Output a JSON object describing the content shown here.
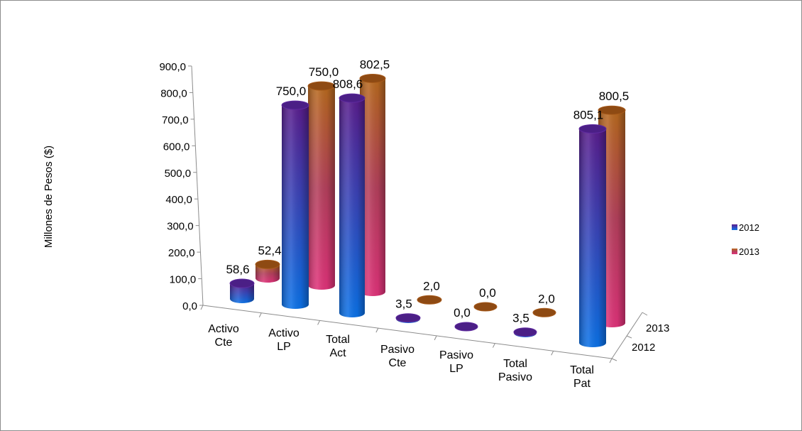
{
  "chart_data": {
    "type": "bar",
    "style": "3d-cylinder",
    "ylabel": "Millones de Pesos ($)",
    "ylim": [
      0,
      900
    ],
    "ytick_labels": [
      "0,0",
      "100,0",
      "200,0",
      "300,0",
      "400,0",
      "500,0",
      "600,0",
      "700,0",
      "800,0",
      "900,0"
    ],
    "categories": [
      [
        "Activo",
        "Cte"
      ],
      [
        "Activo",
        "LP"
      ],
      [
        "Total",
        "Act"
      ],
      [
        "Pasivo",
        "Cte"
      ],
      [
        "Pasivo",
        "LP"
      ],
      [
        "Total",
        "Pasivo"
      ],
      [
        "Total",
        "Pat"
      ]
    ],
    "depth_labels": [
      "2013",
      "2012"
    ],
    "legend_position": "right",
    "series": [
      {
        "name": "2012",
        "color": "#1f5fd6",
        "values": [
          58.6,
          750.0,
          808.6,
          3.5,
          0.0,
          3.5,
          805.1
        ],
        "labels": [
          "58,6",
          "750,0",
          "808,6",
          "3,5",
          "0,0",
          "3,5",
          "805,1"
        ]
      },
      {
        "name": "2013",
        "color": "#a8302f",
        "values": [
          52.4,
          750.0,
          802.5,
          2.0,
          0.0,
          2.0,
          800.5
        ],
        "labels": [
          "52,4",
          "750,0",
          "802,5",
          "2,0",
          "0,0",
          "2,0",
          "800,5"
        ]
      }
    ]
  }
}
